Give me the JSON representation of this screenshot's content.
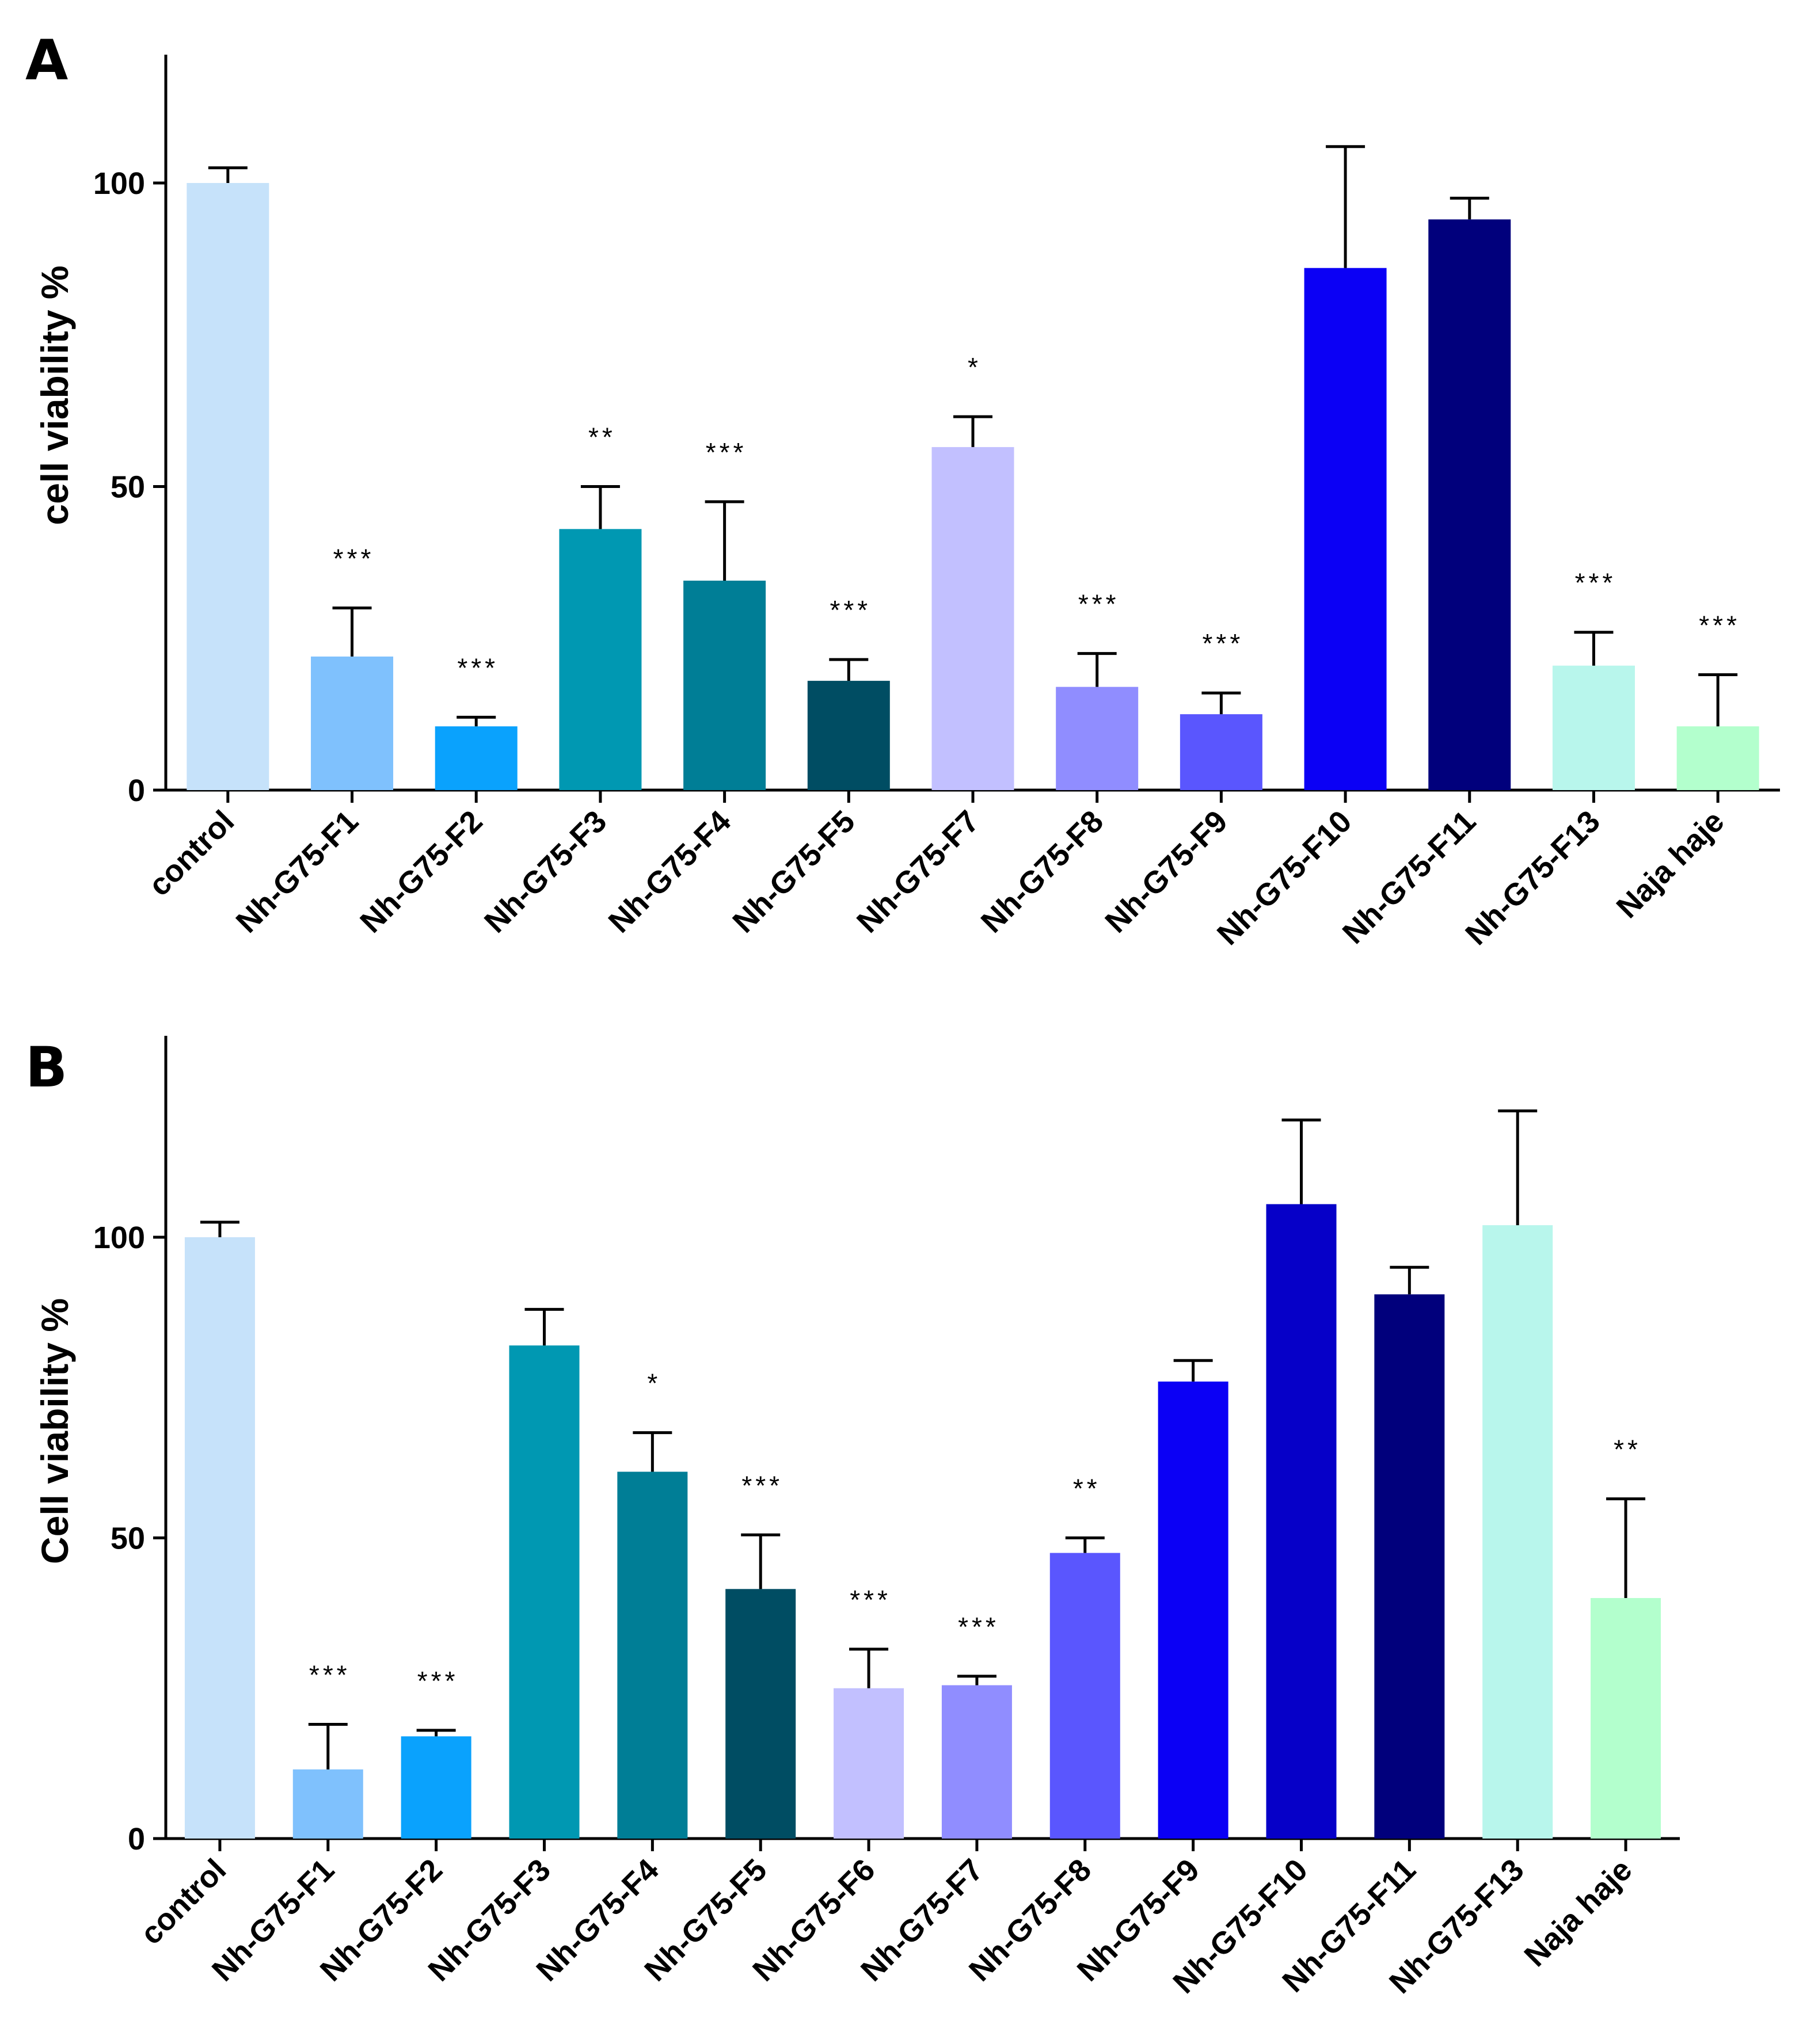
{
  "chart_data": [
    {
      "panel": "A",
      "type": "bar",
      "ylabel": "cell viability %",
      "xlabel": "",
      "ylim": [
        0,
        120
      ],
      "yticks": [
        0,
        50,
        100
      ],
      "categories": [
        "control",
        "Nh-G75-F1",
        "Nh-G75-F2",
        "Nh-G75-F3",
        "Nh-G75-F4",
        "Nh-G75-F5",
        "Nh-G75-F7",
        "Nh-G75-F8",
        "Nh-G75-F9",
        "Nh-G75-F10",
        "Nh-G75-F11",
        "Nh-G75-F13",
        "Naja haje"
      ],
      "values": [
        100,
        22,
        10.5,
        43,
        34.5,
        18,
        56.5,
        17,
        12.5,
        86,
        94,
        20.5,
        10.5
      ],
      "errors": [
        2.5,
        8,
        1.5,
        7,
        13,
        3.5,
        5,
        5.5,
        3.5,
        20,
        3.5,
        5.5,
        8.5
      ],
      "significance": [
        "",
        "***",
        "***",
        "**",
        "***",
        "***",
        "*",
        "***",
        "***",
        "",
        "",
        "***",
        "***"
      ],
      "colors": [
        "#c6e2fa",
        "#7fc1fd",
        "#0aa2fd",
        "#0098b2",
        "#007e96",
        "#004d63",
        "#c2c0ff",
        "#908dff",
        "#5a56fe",
        "#0b00f5",
        "#01007c",
        "#b8f6ec",
        "#b3ffcd"
      ]
    },
    {
      "panel": "B",
      "type": "bar",
      "ylabel": "Cell viability %",
      "xlabel": "",
      "ylim": [
        0,
        133
      ],
      "yticks": [
        0,
        50,
        100
      ],
      "categories": [
        "control",
        "Nh-G75-F1",
        "Nh-G75-F2",
        "Nh-G75-F3",
        "Nh-G75-F4",
        "Nh-G75-F5",
        "Nh-G75-F6",
        "Nh-G75-F7",
        "Nh-G75-F8",
        "Nh-G75-F9",
        "Nh-G75-F10",
        "Nh-G75-F11",
        "Nh-G75-F13",
        "Naja haje"
      ],
      "values": [
        100,
        11.5,
        17,
        82,
        61,
        41.5,
        25,
        25.5,
        47.5,
        76,
        105.5,
        90.5,
        102,
        40
      ],
      "errors": [
        2.5,
        7.5,
        1,
        6,
        6.5,
        9,
        6.5,
        1.5,
        2.5,
        3.5,
        14,
        4.5,
        19,
        16.5
      ],
      "significance": [
        "",
        "***",
        "***",
        "",
        "*",
        "***",
        "***",
        "***",
        "**",
        "",
        "",
        "",
        "",
        "**"
      ],
      "colors": [
        "#c6e2fa",
        "#7fc1fd",
        "#0aa2fd",
        "#0098b2",
        "#007e96",
        "#004d63",
        "#c2c0ff",
        "#908dff",
        "#5a56fe",
        "#0b00f5",
        "#0600c8",
        "#01007c",
        "#b8f6ec",
        "#b3ffcd"
      ]
    }
  ]
}
